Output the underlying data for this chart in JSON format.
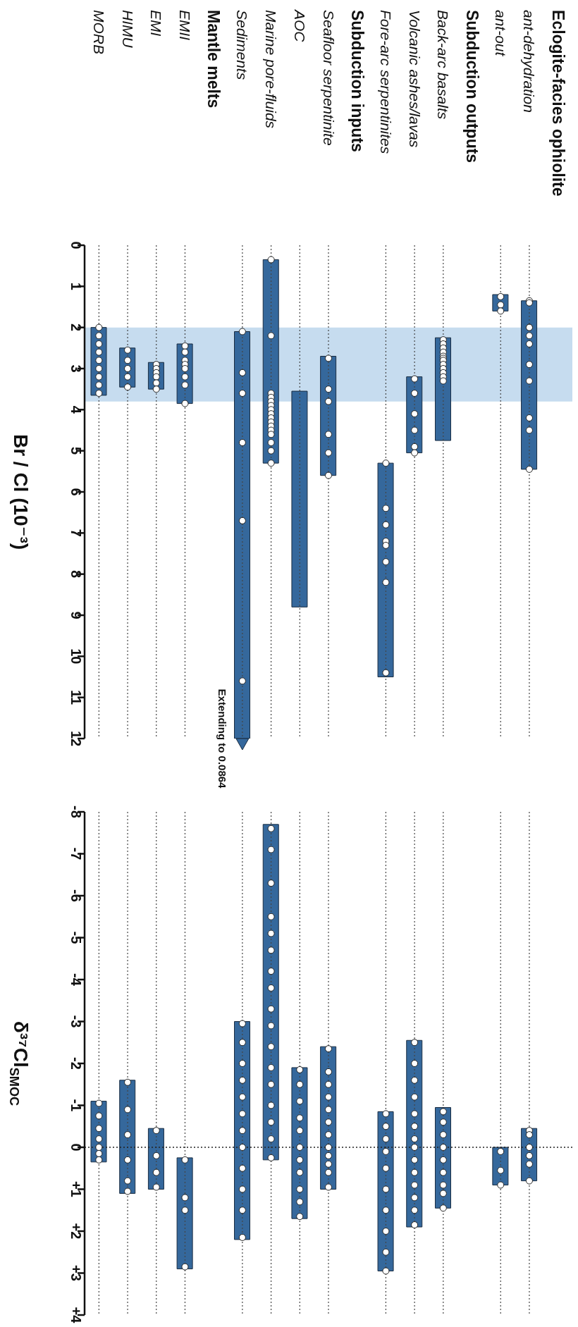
{
  "chart_data": [
    {
      "type": "bar",
      "categories": [
        "MORB",
        "HIMU",
        "EMI",
        "EMII",
        "Mantle melts",
        "Sediments",
        "Marine pore-fluids",
        "AOC",
        "Seafloor serpentinite",
        "Subduction inputs",
        "Fore-arc serpentinites",
        "Volcanic ashes/lavas",
        "Back-arc basalts",
        "Subduction outputs",
        "ant-out",
        "ant-dehydration",
        "Eclogite-facies ophiolite"
      ],
      "ylabel": "Br / Cl (10⁻³)",
      "ylim": [
        12,
        0
      ],
      "yticks": [
        0,
        1,
        2,
        3,
        4,
        5,
        6,
        7,
        8,
        9,
        10,
        11,
        12
      ],
      "grid": "x",
      "marker": "circle",
      "bands": [
        {
          "axis": "y",
          "from": 2,
          "to": 3.8,
          "color": "#c6dcef"
        }
      ],
      "annotations": [
        {
          "text": "Extending to 0.0864",
          "x": "Sediments",
          "y": 12
        }
      ],
      "series": [
        {
          "type": "bar",
          "color": "#35689c",
          "base": [
            2.0,
            2.5,
            2.85,
            2.4,
            null,
            2.1,
            0.35,
            3.55,
            2.7,
            null,
            5.3,
            3.2,
            2.25,
            null,
            1.2,
            1.35,
            null
          ],
          "values": [
            1.65,
            0.95,
            0.65,
            1.45,
            null,
            9.9,
            4.95,
            5.25,
            2.9,
            null,
            5.2,
            1.85,
            2.5,
            null,
            0.4,
            4.1,
            null
          ]
        },
        {
          "type": "scatter",
          "color": "#ffffff",
          "x": [
            "MORB",
            "MORB",
            "MORB",
            "MORB",
            "MORB",
            "MORB",
            "MORB",
            "MORB",
            "MORB",
            "HIMU",
            "HIMU",
            "HIMU",
            "HIMU",
            "HIMU",
            "EMI",
            "EMI",
            "EMI",
            "EMI",
            "EMI",
            "EMI",
            "EMII",
            "EMII",
            "EMII",
            "EMII",
            "EMII",
            "EMII",
            "EMII",
            "EMII",
            "Sediments",
            "Sediments",
            "Sediments",
            "Sediments",
            "Sediments",
            "Sediments",
            "Marine pore-fluids",
            "Marine pore-fluids",
            "Marine pore-fluids",
            "Marine pore-fluids",
            "Marine pore-fluids",
            "Marine pore-fluids",
            "Marine pore-fluids",
            "Marine pore-fluids",
            "Marine pore-fluids",
            "Marine pore-fluids",
            "Marine pore-fluids",
            "Marine pore-fluids",
            "Marine pore-fluids",
            "Marine pore-fluids",
            "Marine pore-fluids",
            "Marine pore-fluids",
            "Seafloor serpentinite",
            "Seafloor serpentinite",
            "Seafloor serpentinite",
            "Seafloor serpentinite",
            "Seafloor serpentinite",
            "Seafloor serpentinite",
            "Fore-arc serpentinites",
            "Fore-arc serpentinites",
            "Fore-arc serpentinites",
            "Fore-arc serpentinites",
            "Fore-arc serpentinites",
            "Fore-arc serpentinites",
            "Fore-arc serpentinites",
            "Fore-arc serpentinites",
            "Volcanic ashes/lavas",
            "Volcanic ashes/lavas",
            "Volcanic ashes/lavas",
            "Volcanic ashes/lavas",
            "Volcanic ashes/lavas",
            "Volcanic ashes/lavas",
            "Back-arc basalts",
            "Back-arc basalts",
            "Back-arc basalts",
            "Back-arc basalts",
            "Back-arc basalts",
            "Back-arc basalts",
            "Back-arc basalts",
            "Back-arc basalts",
            "Back-arc basalts",
            "Back-arc basalts",
            "Back-arc basalts",
            "Back-arc basalts",
            "ant-out",
            "ant-out",
            "ant-out",
            "ant-dehydration",
            "ant-dehydration",
            "ant-dehydration",
            "ant-dehydration",
            "ant-dehydration",
            "ant-dehydration",
            "ant-dehydration",
            "ant-dehydration",
            "ant-dehydration",
            "ant-dehydration",
            "ant-dehydration"
          ],
          "values": [
            2.0,
            2.2,
            2.4,
            2.6,
            2.8,
            3.0,
            3.2,
            3.4,
            3.6,
            2.55,
            2.8,
            3.0,
            3.2,
            3.45,
            2.9,
            3.0,
            3.1,
            3.2,
            3.35,
            3.5,
            2.45,
            2.6,
            2.8,
            2.9,
            3.0,
            3.2,
            3.4,
            3.85,
            2.1,
            3.1,
            3.6,
            4.8,
            6.7,
            10.6,
            0.35,
            2.2,
            3.6,
            3.7,
            3.8,
            3.9,
            4.0,
            4.1,
            4.2,
            4.3,
            4.4,
            4.5,
            4.6,
            4.8,
            5.0,
            5.3,
            2.75,
            3.5,
            3.8,
            4.6,
            5.05,
            5.6,
            5.3,
            6.4,
            6.8,
            7.2,
            7.3,
            7.7,
            8.2,
            10.4,
            3.25,
            3.6,
            4.1,
            4.5,
            4.9,
            5.05,
            2.3,
            2.4,
            2.5,
            2.6,
            2.7,
            2.75,
            2.8,
            2.9,
            3.0,
            3.1,
            3.2,
            3.3,
            1.25,
            1.45,
            1.6,
            1.35,
            1.4,
            2.0,
            2.0,
            2.2,
            2.4,
            2.9,
            3.3,
            4.2,
            4.5,
            5.45
          ]
        }
      ]
    },
    {
      "type": "bar",
      "categories": [
        "MORB",
        "HIMU",
        "EMI",
        "EMII",
        "Mantle melts",
        "Sediments",
        "Marine pore-fluids",
        "AOC",
        "Seafloor serpentinite",
        "Subduction inputs",
        "Fore-arc serpentinites",
        "Volcanic ashes/lavas",
        "Back-arc basalts",
        "Subduction outputs",
        "ant-out",
        "ant-dehydration",
        "Eclogite-facies ophiolite"
      ],
      "ylabel": "δ³⁷Cl$_{SMOC}$",
      "ylim": [
        4,
        -8
      ],
      "yticks": [
        -8,
        -7,
        -6,
        -5,
        -4,
        -3,
        -2,
        -1,
        0,
        {
          "value": 1,
          "label": "+1"
        },
        {
          "value": 2,
          "label": "+2"
        },
        {
          "value": 3,
          "label": "+3"
        },
        {
          "value": 4,
          "label": "+4"
        }
      ],
      "grid": "x",
      "marker": "circle",
      "tick_labels": "y",
      "ref_lines": [
        {
          "axis": "y",
          "value": 0,
          "line_style": "dotted",
          "color": "#222222"
        }
      ],
      "series": [
        {
          "type": "bar",
          "color": "#35689c",
          "base": [
            -1.1,
            -1.6,
            -0.45,
            0.25,
            null,
            -3.0,
            -7.7,
            -1.9,
            -2.4,
            null,
            -0.85,
            -2.55,
            -0.95,
            null,
            0.0,
            -0.45,
            null
          ],
          "values": [
            1.45,
            2.7,
            1.45,
            2.65,
            null,
            5.2,
            8.0,
            3.6,
            3.4,
            null,
            3.8,
            4.45,
            2.4,
            null,
            0.9,
            1.25,
            null
          ]
        },
        {
          "type": "scatter",
          "color": "#ffffff",
          "x": [
            "MORB",
            "MORB",
            "MORB",
            "MORB",
            "MORB",
            "MORB",
            "MORB",
            "HIMU",
            "HIMU",
            "HIMU",
            "HIMU",
            "HIMU",
            "HIMU",
            "EMI",
            "EMI",
            "EMI",
            "EMI",
            "EMII",
            "EMII",
            "EMII",
            "EMII",
            "Sediments",
            "Sediments",
            "Sediments",
            "Sediments",
            "Sediments",
            "Sediments",
            "Sediments",
            "Sediments",
            "Sediments",
            "Sediments",
            "Sediments",
            "Sediments",
            "Marine pore-fluids",
            "Marine pore-fluids",
            "Marine pore-fluids",
            "Marine pore-fluids",
            "Marine pore-fluids",
            "Marine pore-fluids",
            "Marine pore-fluids",
            "Marine pore-fluids",
            "Marine pore-fluids",
            "Marine pore-fluids",
            "Marine pore-fluids",
            "Marine pore-fluids",
            "Marine pore-fluids",
            "Marine pore-fluids",
            "Marine pore-fluids",
            "Marine pore-fluids",
            "Marine pore-fluids",
            "AOC",
            "AOC",
            "AOC",
            "AOC",
            "AOC",
            "AOC",
            "AOC",
            "AOC",
            "AOC",
            "AOC",
            "AOC",
            "Seafloor serpentinite",
            "Seafloor serpentinite",
            "Seafloor serpentinite",
            "Seafloor serpentinite",
            "Seafloor serpentinite",
            "Seafloor serpentinite",
            "Seafloor serpentinite",
            "Seafloor serpentinite",
            "Seafloor serpentinite",
            "Seafloor serpentinite",
            "Seafloor serpentinite",
            "Seafloor serpentinite",
            "Fore-arc serpentinites",
            "Fore-arc serpentinites",
            "Fore-arc serpentinites",
            "Fore-arc serpentinites",
            "Fore-arc serpentinites",
            "Fore-arc serpentinites",
            "Fore-arc serpentinites",
            "Fore-arc serpentinites",
            "Fore-arc serpentinites",
            "Fore-arc serpentinites",
            "Volcanic ashes/lavas",
            "Volcanic ashes/lavas",
            "Volcanic ashes/lavas",
            "Volcanic ashes/lavas",
            "Volcanic ashes/lavas",
            "Volcanic ashes/lavas",
            "Volcanic ashes/lavas",
            "Volcanic ashes/lavas",
            "Volcanic ashes/lavas",
            "Volcanic ashes/lavas",
            "Volcanic ashes/lavas",
            "Volcanic ashes/lavas",
            "Volcanic ashes/lavas",
            "Volcanic ashes/lavas",
            "Back-arc basalts",
            "Back-arc basalts",
            "Back-arc basalts",
            "Back-arc basalts",
            "Back-arc basalts",
            "Back-arc basalts",
            "Back-arc basalts",
            "Back-arc basalts",
            "Back-arc basalts",
            "ant-out",
            "ant-out",
            "ant-out",
            "ant-dehydration",
            "ant-dehydration",
            "ant-dehydration",
            "ant-dehydration",
            "ant-dehydration",
            "ant-dehydration"
          ],
          "values": [
            -1.05,
            -0.75,
            -0.45,
            -0.2,
            0.0,
            0.15,
            0.3,
            -1.55,
            -0.9,
            -0.3,
            0.3,
            0.8,
            1.05,
            -0.4,
            0.2,
            0.6,
            0.95,
            0.3,
            1.2,
            1.5,
            2.85,
            -2.95,
            -2.5,
            -2.0,
            -1.6,
            -1.2,
            -0.8,
            -0.4,
            0.0,
            0.5,
            1.0,
            1.5,
            2.15,
            -7.6,
            -7.1,
            -6.3,
            -5.5,
            -5.1,
            -4.7,
            -4.2,
            -3.8,
            -3.3,
            -2.9,
            -2.4,
            -1.9,
            -1.5,
            -1.0,
            -0.6,
            -0.2,
            0.25,
            -1.85,
            -1.5,
            -1.1,
            -0.7,
            -0.4,
            0.0,
            0.3,
            0.6,
            1.0,
            1.3,
            1.65,
            -2.35,
            -1.8,
            -1.5,
            -1.2,
            -0.9,
            -0.6,
            -0.3,
            0.0,
            0.2,
            0.4,
            0.6,
            0.95,
            -0.8,
            -0.5,
            -0.2,
            0.1,
            0.5,
            1.0,
            1.5,
            2.0,
            2.5,
            2.95,
            -2.5,
            -2.0,
            -1.6,
            -1.2,
            -0.8,
            -0.5,
            -0.2,
            0.0,
            0.3,
            0.6,
            0.9,
            1.2,
            1.5,
            1.85,
            -0.85,
            -0.6,
            -0.3,
            0.0,
            0.3,
            0.6,
            0.9,
            1.1,
            1.45,
            0.1,
            0.55,
            0.9,
            -0.4,
            -0.3,
            0.0,
            0.2,
            0.4,
            0.8
          ]
        }
      ]
    }
  ]
}
